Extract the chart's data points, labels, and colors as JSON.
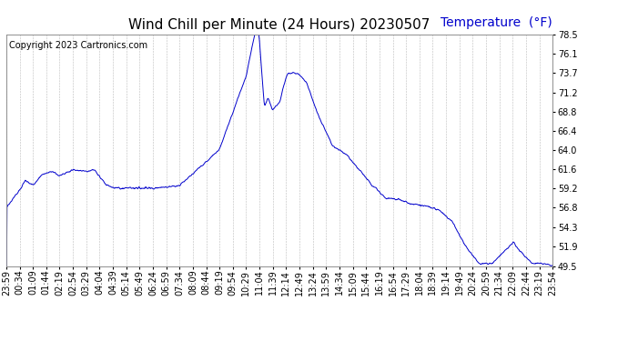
{
  "title": "Wind Chill per Minute (24 Hours) 20230507",
  "ylabel_text": "Temperature  (°F)",
  "copyright_text": "Copyright 2023 Cartronics.com",
  "line_color": "#0000cc",
  "background_color": "#ffffff",
  "grid_color": "#aaaaaa",
  "ylabel_color": "#0000cc",
  "ylim": [
    49.5,
    78.5
  ],
  "yticks": [
    49.5,
    51.9,
    54.3,
    56.8,
    59.2,
    61.6,
    64.0,
    66.4,
    68.8,
    71.2,
    73.7,
    76.1,
    78.5
  ],
  "x_labels": [
    "23:59",
    "00:34",
    "01:09",
    "01:44",
    "02:19",
    "02:54",
    "03:29",
    "04:04",
    "04:39",
    "05:14",
    "05:49",
    "06:24",
    "06:59",
    "07:34",
    "08:09",
    "08:44",
    "09:19",
    "09:54",
    "10:29",
    "11:04",
    "11:39",
    "12:14",
    "12:49",
    "13:24",
    "13:59",
    "14:34",
    "15:09",
    "15:44",
    "16:19",
    "16:54",
    "17:29",
    "18:04",
    "18:39",
    "19:14",
    "19:49",
    "20:24",
    "20:59",
    "21:34",
    "22:09",
    "22:44",
    "23:19",
    "23:54"
  ],
  "title_fontsize": 11,
  "tick_fontsize": 7,
  "ylabel_fontsize": 10,
  "copyright_fontsize": 7
}
